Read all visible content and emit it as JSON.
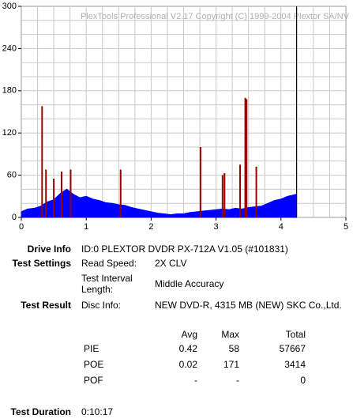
{
  "chart_data": {
    "type": "area",
    "watermark": "PlexTools Professional V2.17 Copyright (C) 1999-2004 Plextor SA/NV",
    "xlim": [
      0,
      5
    ],
    "xticks": [
      0,
      1,
      2,
      3,
      4,
      5
    ],
    "ylim": [
      0,
      300
    ],
    "yticks": [
      0,
      60,
      120,
      180,
      240,
      300
    ],
    "grid": true,
    "grid_x_step": 0.25,
    "grid_y_step": 20,
    "series": [
      {
        "kind": "area",
        "color": "#0000ff",
        "x": [
          0,
          0.1,
          0.2,
          0.3,
          0.4,
          0.5,
          0.6,
          0.7,
          0.8,
          0.9,
          1.0,
          1.1,
          1.2,
          1.3,
          1.4,
          1.5,
          1.6,
          1.7,
          1.8,
          1.9,
          2.0,
          2.1,
          2.2,
          2.3,
          2.4,
          2.5,
          2.6,
          2.7,
          2.8,
          2.9,
          3.0,
          3.1,
          3.2,
          3.3,
          3.4,
          3.5,
          3.6,
          3.7,
          3.8,
          3.9,
          4.0,
          4.1,
          4.2,
          4.24
        ],
        "values": [
          8,
          12,
          13,
          16,
          22,
          25,
          34,
          40,
          33,
          28,
          30,
          26,
          24,
          21,
          20,
          18,
          17,
          14,
          12,
          10,
          8,
          6,
          5,
          4,
          5,
          5,
          7,
          8,
          9,
          10,
          11,
          12,
          11,
          13,
          12,
          14,
          15,
          16,
          20,
          24,
          26,
          30,
          32,
          33
        ]
      },
      {
        "kind": "spikes",
        "color": "#990000",
        "x": [
          0.32,
          0.38,
          0.5,
          0.62,
          0.76,
          1.53,
          2.76,
          3.1,
          3.13,
          3.37,
          3.45,
          3.47,
          3.62
        ],
        "values": [
          158,
          68,
          55,
          65,
          68,
          68,
          100,
          60,
          63,
          75,
          170,
          168,
          72
        ]
      }
    ],
    "end_line": {
      "x": 4.24,
      "color": "#000000"
    }
  },
  "info": {
    "drive_label": "Drive Info",
    "drive": "ID:0 PLEXTOR DVDR PX-712A V1.05 (#101831)",
    "settings_label": "Test Settings",
    "read_speed_label": "Read Speed:",
    "read_speed": "2X CLV",
    "interval_label": "Test Interval Length:",
    "interval": "Middle Accuracy",
    "result_label": "Test Result",
    "disc_label": "Disc Info:",
    "disc": "NEW DVD-R, 4315 MB (NEW) SKC Co.,Ltd.",
    "duration_label": "Test Duration",
    "duration": "0:10:17"
  },
  "table": {
    "header": [
      "Avg",
      "Max",
      "Total"
    ],
    "rows": [
      [
        "PIE",
        0.42,
        58,
        57667
      ],
      [
        "POE",
        0.02,
        171,
        3414
      ],
      [
        "POF",
        "-",
        "-",
        0
      ]
    ]
  }
}
